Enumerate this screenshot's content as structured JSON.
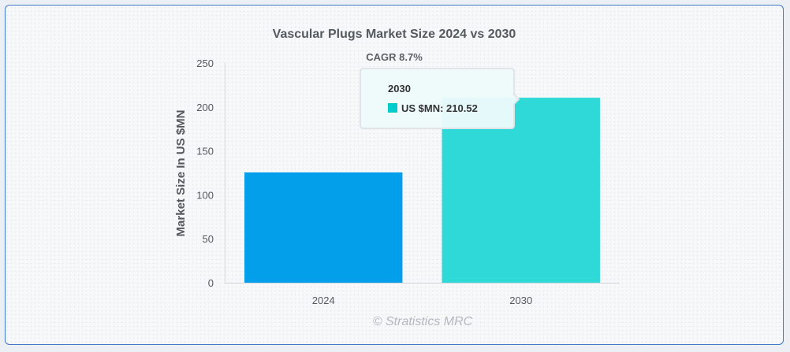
{
  "chart_data": {
    "type": "bar",
    "title": "Vascular Plugs Market Size 2024 vs 2030",
    "annotation": "CAGR 8.7%",
    "xlabel": "",
    "ylabel": "Market Size In US $MN",
    "categories": [
      "2024",
      "2030"
    ],
    "series": [
      {
        "name": "US $MN",
        "values": [
          125.5,
          210.52
        ]
      }
    ],
    "colors": [
      "#049fea",
      "#2ed9d7"
    ],
    "ylim": [
      0,
      250
    ],
    "yticks": [
      "0",
      "50",
      "100",
      "150",
      "200",
      "250"
    ],
    "grid": false,
    "legend": "none",
    "tooltip": {
      "title": "2030",
      "label": "US $MN: 210.52"
    },
    "credit": "© Stratistics MRC"
  }
}
